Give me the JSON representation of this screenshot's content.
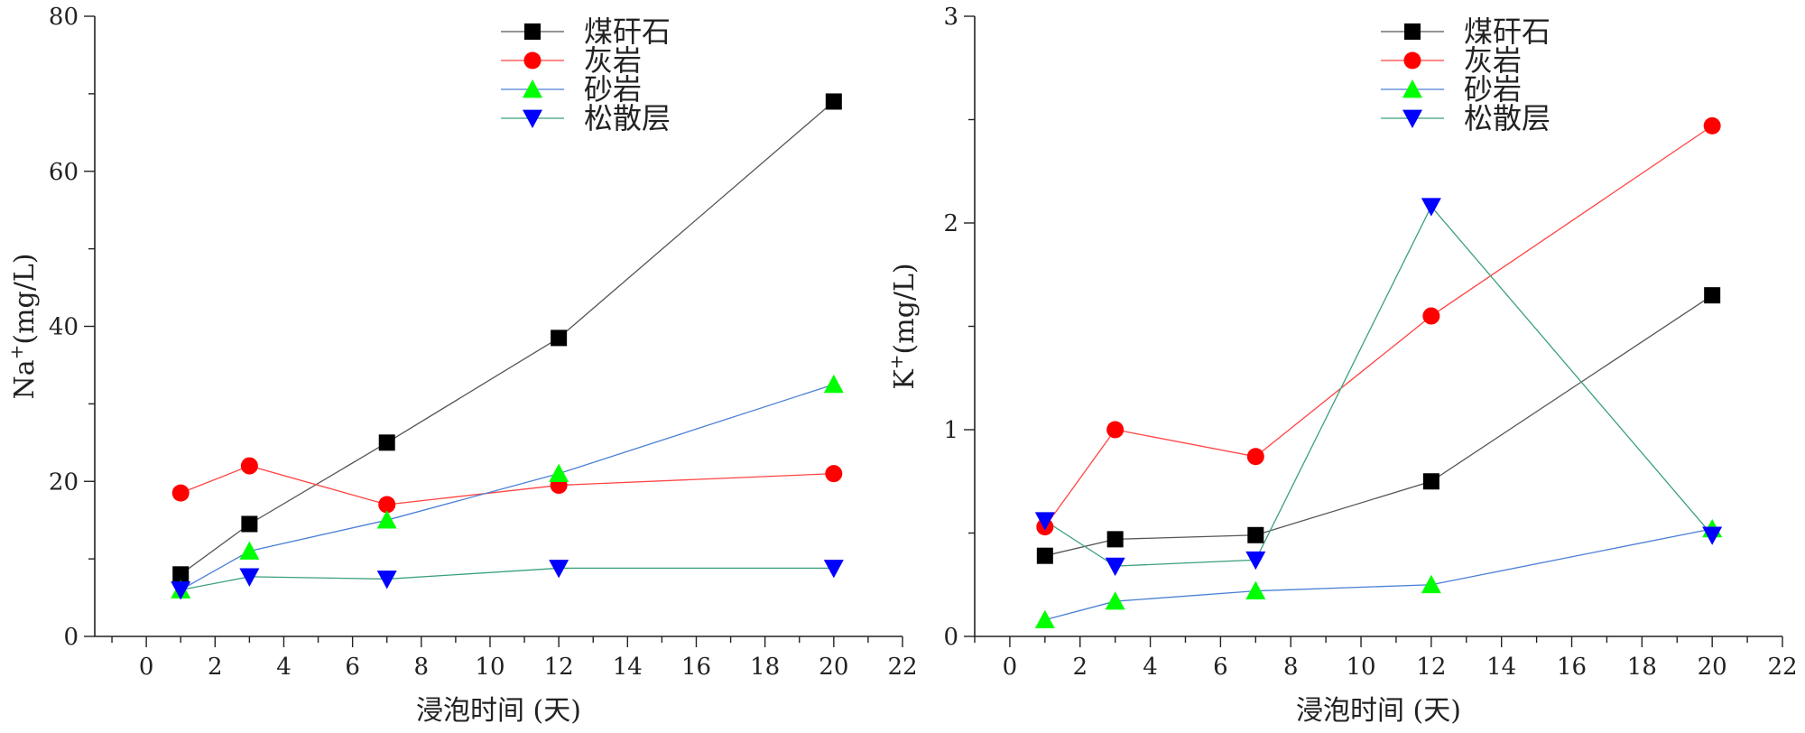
{
  "chart_data": [
    {
      "type": "line",
      "xlabel": "浸泡时间 (天)",
      "ylabel_base": "Na",
      "ylabel_sup": "+",
      "ylabel_unit": "(mg/L)",
      "xlim": [
        -1.5,
        22
      ],
      "ylim": [
        0,
        80
      ],
      "xticks": [
        0,
        2,
        4,
        6,
        8,
        10,
        12,
        14,
        16,
        18,
        20,
        22
      ],
      "yticks": [
        0,
        20,
        40,
        60,
        80
      ],
      "x": [
        1,
        3,
        7,
        12,
        20
      ],
      "legend_position": "top-center",
      "series": [
        {
          "name": "煤矸石",
          "marker": "square",
          "marker_color": "#000000",
          "line_color": "#555555",
          "values": [
            8,
            14.5,
            25,
            38.5,
            69
          ]
        },
        {
          "name": "灰岩",
          "marker": "circle",
          "marker_color": "#ff0000",
          "line_color": "#ff4444",
          "values": [
            18.5,
            22,
            17,
            19.5,
            21
          ]
        },
        {
          "name": "砂岩",
          "marker": "triangle-up",
          "marker_color": "#00ff00",
          "line_color": "#4a7fd4",
          "values": [
            6,
            11,
            15,
            21,
            32.5
          ]
        },
        {
          "name": "松散层",
          "marker": "triangle-down",
          "marker_color": "#0000ff",
          "line_color": "#3aa07a",
          "values": [
            6,
            7.7,
            7.4,
            8.8,
            8.8
          ]
        }
      ]
    },
    {
      "type": "line",
      "xlabel": "浸泡时间 (天)",
      "ylabel_base": "K",
      "ylabel_sup": "+",
      "ylabel_unit": "(mg/L)",
      "xlim": [
        -1,
        22
      ],
      "ylim": [
        0,
        3
      ],
      "xticks": [
        0,
        2,
        4,
        6,
        8,
        10,
        12,
        14,
        16,
        18,
        20,
        22
      ],
      "yticks": [
        0,
        1,
        2,
        3
      ],
      "x": [
        1,
        3,
        7,
        12,
        20
      ],
      "legend_position": "top-center",
      "series": [
        {
          "name": "煤矸石",
          "marker": "square",
          "marker_color": "#000000",
          "line_color": "#555555",
          "values": [
            0.39,
            0.47,
            0.49,
            0.75,
            1.65
          ]
        },
        {
          "name": "灰岩",
          "marker": "circle",
          "marker_color": "#ff0000",
          "line_color": "#ff4444",
          "values": [
            0.53,
            1.0,
            0.87,
            1.55,
            2.47
          ]
        },
        {
          "name": "砂岩",
          "marker": "triangle-up",
          "marker_color": "#00ff00",
          "line_color": "#4a7fd4",
          "values": [
            0.08,
            0.17,
            0.22,
            0.25,
            0.52
          ]
        },
        {
          "name": "松散层",
          "marker": "triangle-down",
          "marker_color": "#0000ff",
          "line_color": "#3aa07a",
          "values": [
            0.56,
            0.34,
            0.37,
            2.08,
            0.49
          ]
        }
      ]
    }
  ]
}
